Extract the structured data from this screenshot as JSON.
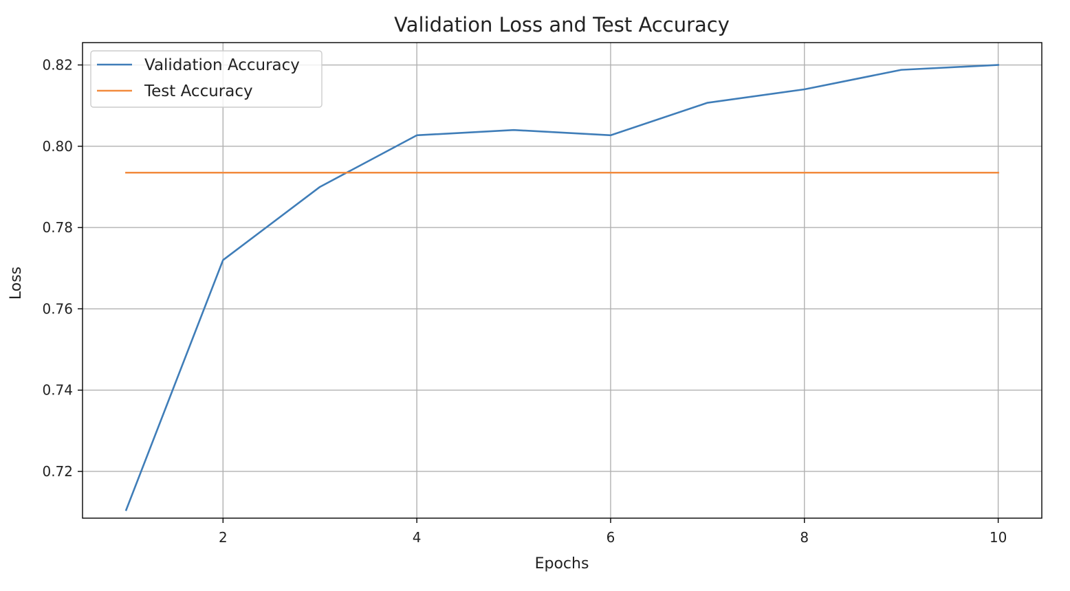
{
  "chart_data": {
    "type": "line",
    "title": "Validation Loss and Test Accuracy",
    "xlabel": "Epochs",
    "ylabel": "Loss",
    "xlim": [
      0.55,
      10.45
    ],
    "ylim": [
      0.7085,
      0.8255
    ],
    "xticks": [
      2,
      4,
      6,
      8,
      10
    ],
    "yticks": [
      0.72,
      0.74,
      0.76,
      0.78,
      0.8,
      0.82
    ],
    "xtick_labels": [
      "2",
      "4",
      "6",
      "8",
      "10"
    ],
    "ytick_labels": [
      "0.72",
      "0.74",
      "0.76",
      "0.78",
      "0.80",
      "0.82"
    ],
    "grid": true,
    "legend_position": "upper-left",
    "series": [
      {
        "name": "Validation Accuracy",
        "color": "#3f7db8",
        "x": [
          1,
          2,
          3,
          4,
          5,
          6,
          7,
          8,
          9,
          10
        ],
        "y": [
          0.7105,
          0.772,
          0.79,
          0.8027,
          0.804,
          0.8027,
          0.8107,
          0.814,
          0.8188,
          0.82
        ]
      },
      {
        "name": "Test Accuracy",
        "color": "#f28a3c",
        "x": [
          1,
          2,
          3,
          4,
          5,
          6,
          7,
          8,
          9,
          10
        ],
        "y": [
          0.7935,
          0.7935,
          0.7935,
          0.7935,
          0.7935,
          0.7935,
          0.7935,
          0.7935,
          0.7935,
          0.7935
        ]
      }
    ]
  }
}
